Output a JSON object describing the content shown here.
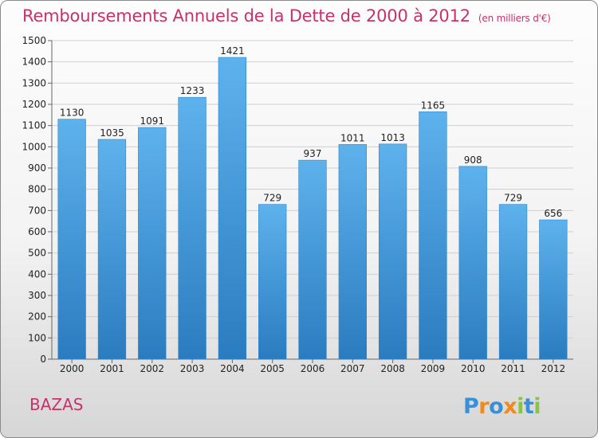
{
  "title": "Remboursements Annuels de la Dette de 2000 à 2012",
  "subtitle": "(en milliers d'€)",
  "location": "BAZAS",
  "brand": "Proxiti",
  "colors": {
    "title": "#c8326b",
    "bar_light": "#5eb2ec",
    "bar_dark": "#2a7cc0"
  },
  "chart_data": {
    "type": "bar",
    "title": "Remboursements Annuels de la Dette de 2000 à 2012",
    "subtitle": "(en milliers d'€)",
    "xlabel": "",
    "ylabel": "",
    "categories": [
      "2000",
      "2001",
      "2002",
      "2003",
      "2004",
      "2005",
      "2006",
      "2007",
      "2008",
      "2009",
      "2010",
      "2011",
      "2012"
    ],
    "values": [
      1130,
      1035,
      1091,
      1233,
      1421,
      729,
      937,
      1011,
      1013,
      1165,
      908,
      729,
      656
    ],
    "ylim": [
      0,
      1500
    ],
    "yticks": [
      0,
      100,
      200,
      300,
      400,
      500,
      600,
      700,
      800,
      900,
      1000,
      1100,
      1200,
      1300,
      1400,
      1500
    ],
    "grid": true,
    "legend": "none"
  }
}
